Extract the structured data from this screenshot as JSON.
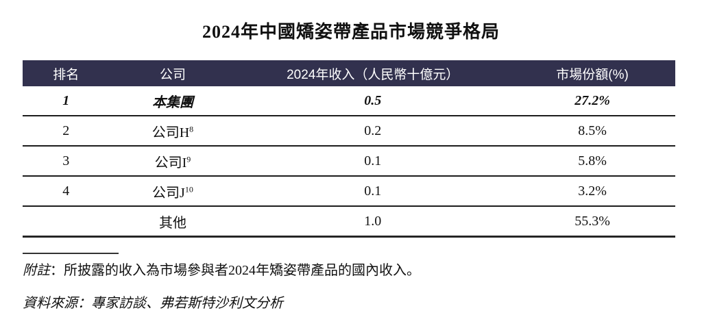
{
  "header": {
    "title": "2024年中國矯姿帶產品市場競爭格局"
  },
  "table": {
    "headers": [
      "排名",
      "公司",
      "2024年收入（人民幣十億元）",
      "市場份額(%)"
    ],
    "header_bg_color": "#32314e",
    "header_text_color": "#ffffff",
    "rows": [
      {
        "rank": "1",
        "company": "本集團",
        "company_sup": "",
        "revenue": "0.5",
        "share": "27.2%"
      },
      {
        "rank": "2",
        "company": "公司H",
        "company_sup": "8",
        "revenue": "0.2",
        "share": "8.5%"
      },
      {
        "rank": "3",
        "company": "公司I",
        "company_sup": "9",
        "revenue": "0.1",
        "share": "5.8%"
      },
      {
        "rank": "4",
        "company": "公司J",
        "company_sup": "10",
        "revenue": "0.1",
        "share": "3.2%"
      },
      {
        "rank": "",
        "company": "其他",
        "company_sup": "",
        "revenue": "1.0",
        "share": "55.3%"
      }
    ]
  },
  "chart_data": {
    "type": "table",
    "title": "2024年中國矯姿帶產品市場競爭格局",
    "columns": [
      "排名",
      "公司",
      "2024年收入（人民幣十億元）",
      "市場份額(%)"
    ],
    "rows": [
      [
        "1",
        "本集團",
        0.5,
        "27.2%"
      ],
      [
        "2",
        "公司H8",
        0.2,
        "8.5%"
      ],
      [
        "3",
        "公司I9",
        0.1,
        "5.8%"
      ],
      [
        "4",
        "公司J10",
        0.1,
        "3.2%"
      ],
      [
        "",
        "其他",
        1.0,
        "55.3%"
      ]
    ]
  },
  "footnotes": {
    "note_label": "附註",
    "note_text": "：所披露的收入為市場參與者2024年矯姿帶產品的國內收入。",
    "source_text": "資料來源：專家訪談、弗若斯特沙利文分析"
  }
}
